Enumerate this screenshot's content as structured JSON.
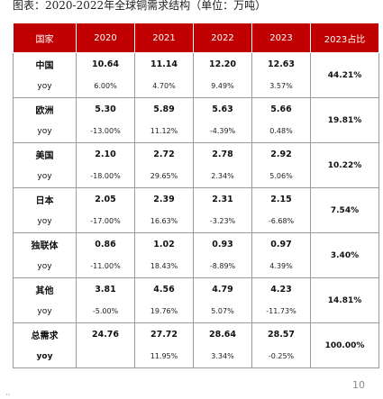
{
  "caption": "图表：2020-2022年全球铜需求结构（单位：万吨）",
  "table": {
    "headers": [
      "国家",
      "2020",
      "2021",
      "2022",
      "2023",
      "2023占比"
    ],
    "rows": [
      {
        "name": "中国",
        "values": [
          "10.64",
          "11.14",
          "12.20",
          "12.63"
        ],
        "yoy_label": "yoy",
        "yoy": [
          "6.00%",
          "4.70%",
          "9.49%",
          "3.57%"
        ],
        "share": "44.21%"
      },
      {
        "name": "欧洲",
        "values": [
          "5.30",
          "5.89",
          "5.63",
          "5.66"
        ],
        "yoy_label": "yoy",
        "yoy": [
          "-13.00%",
          "11.12%",
          "-4.39%",
          "0.48%"
        ],
        "share": "19.81%"
      },
      {
        "name": "美国",
        "values": [
          "2.10",
          "2.72",
          "2.78",
          "2.92"
        ],
        "yoy_label": "yoy",
        "yoy": [
          "-18.00%",
          "29.65%",
          "2.34%",
          "5.06%"
        ],
        "share": "10.22%"
      },
      {
        "name": "日本",
        "values": [
          "2.05",
          "2.39",
          "2.31",
          "2.15"
        ],
        "yoy_label": "yoy",
        "yoy": [
          "-17.00%",
          "16.63%",
          "-3.23%",
          "-6.68%"
        ],
        "share": "7.54%"
      },
      {
        "name": "独联体",
        "values": [
          "0.86",
          "1.02",
          "0.93",
          "0.97"
        ],
        "yoy_label": "yoy",
        "yoy": [
          "-11.00%",
          "18.43%",
          "-8.89%",
          "4.39%"
        ],
        "share": "3.40%"
      },
      {
        "name": "其他",
        "values": [
          "3.81",
          "4.56",
          "4.79",
          "4.23"
        ],
        "yoy_label": "yoy",
        "yoy": [
          "-5.00%",
          "19.76%",
          "5.07%",
          "-11.73%"
        ],
        "share": "14.81%"
      },
      {
        "name": "总需求",
        "values": [
          "24.76",
          "27.72",
          "28.64",
          "28.57"
        ],
        "yoy_label": "yoy",
        "yoy": [
          "",
          "11.95%",
          "3.34%",
          "-0.25%"
        ],
        "share": "100.00%"
      }
    ]
  },
  "page_number": "10"
}
